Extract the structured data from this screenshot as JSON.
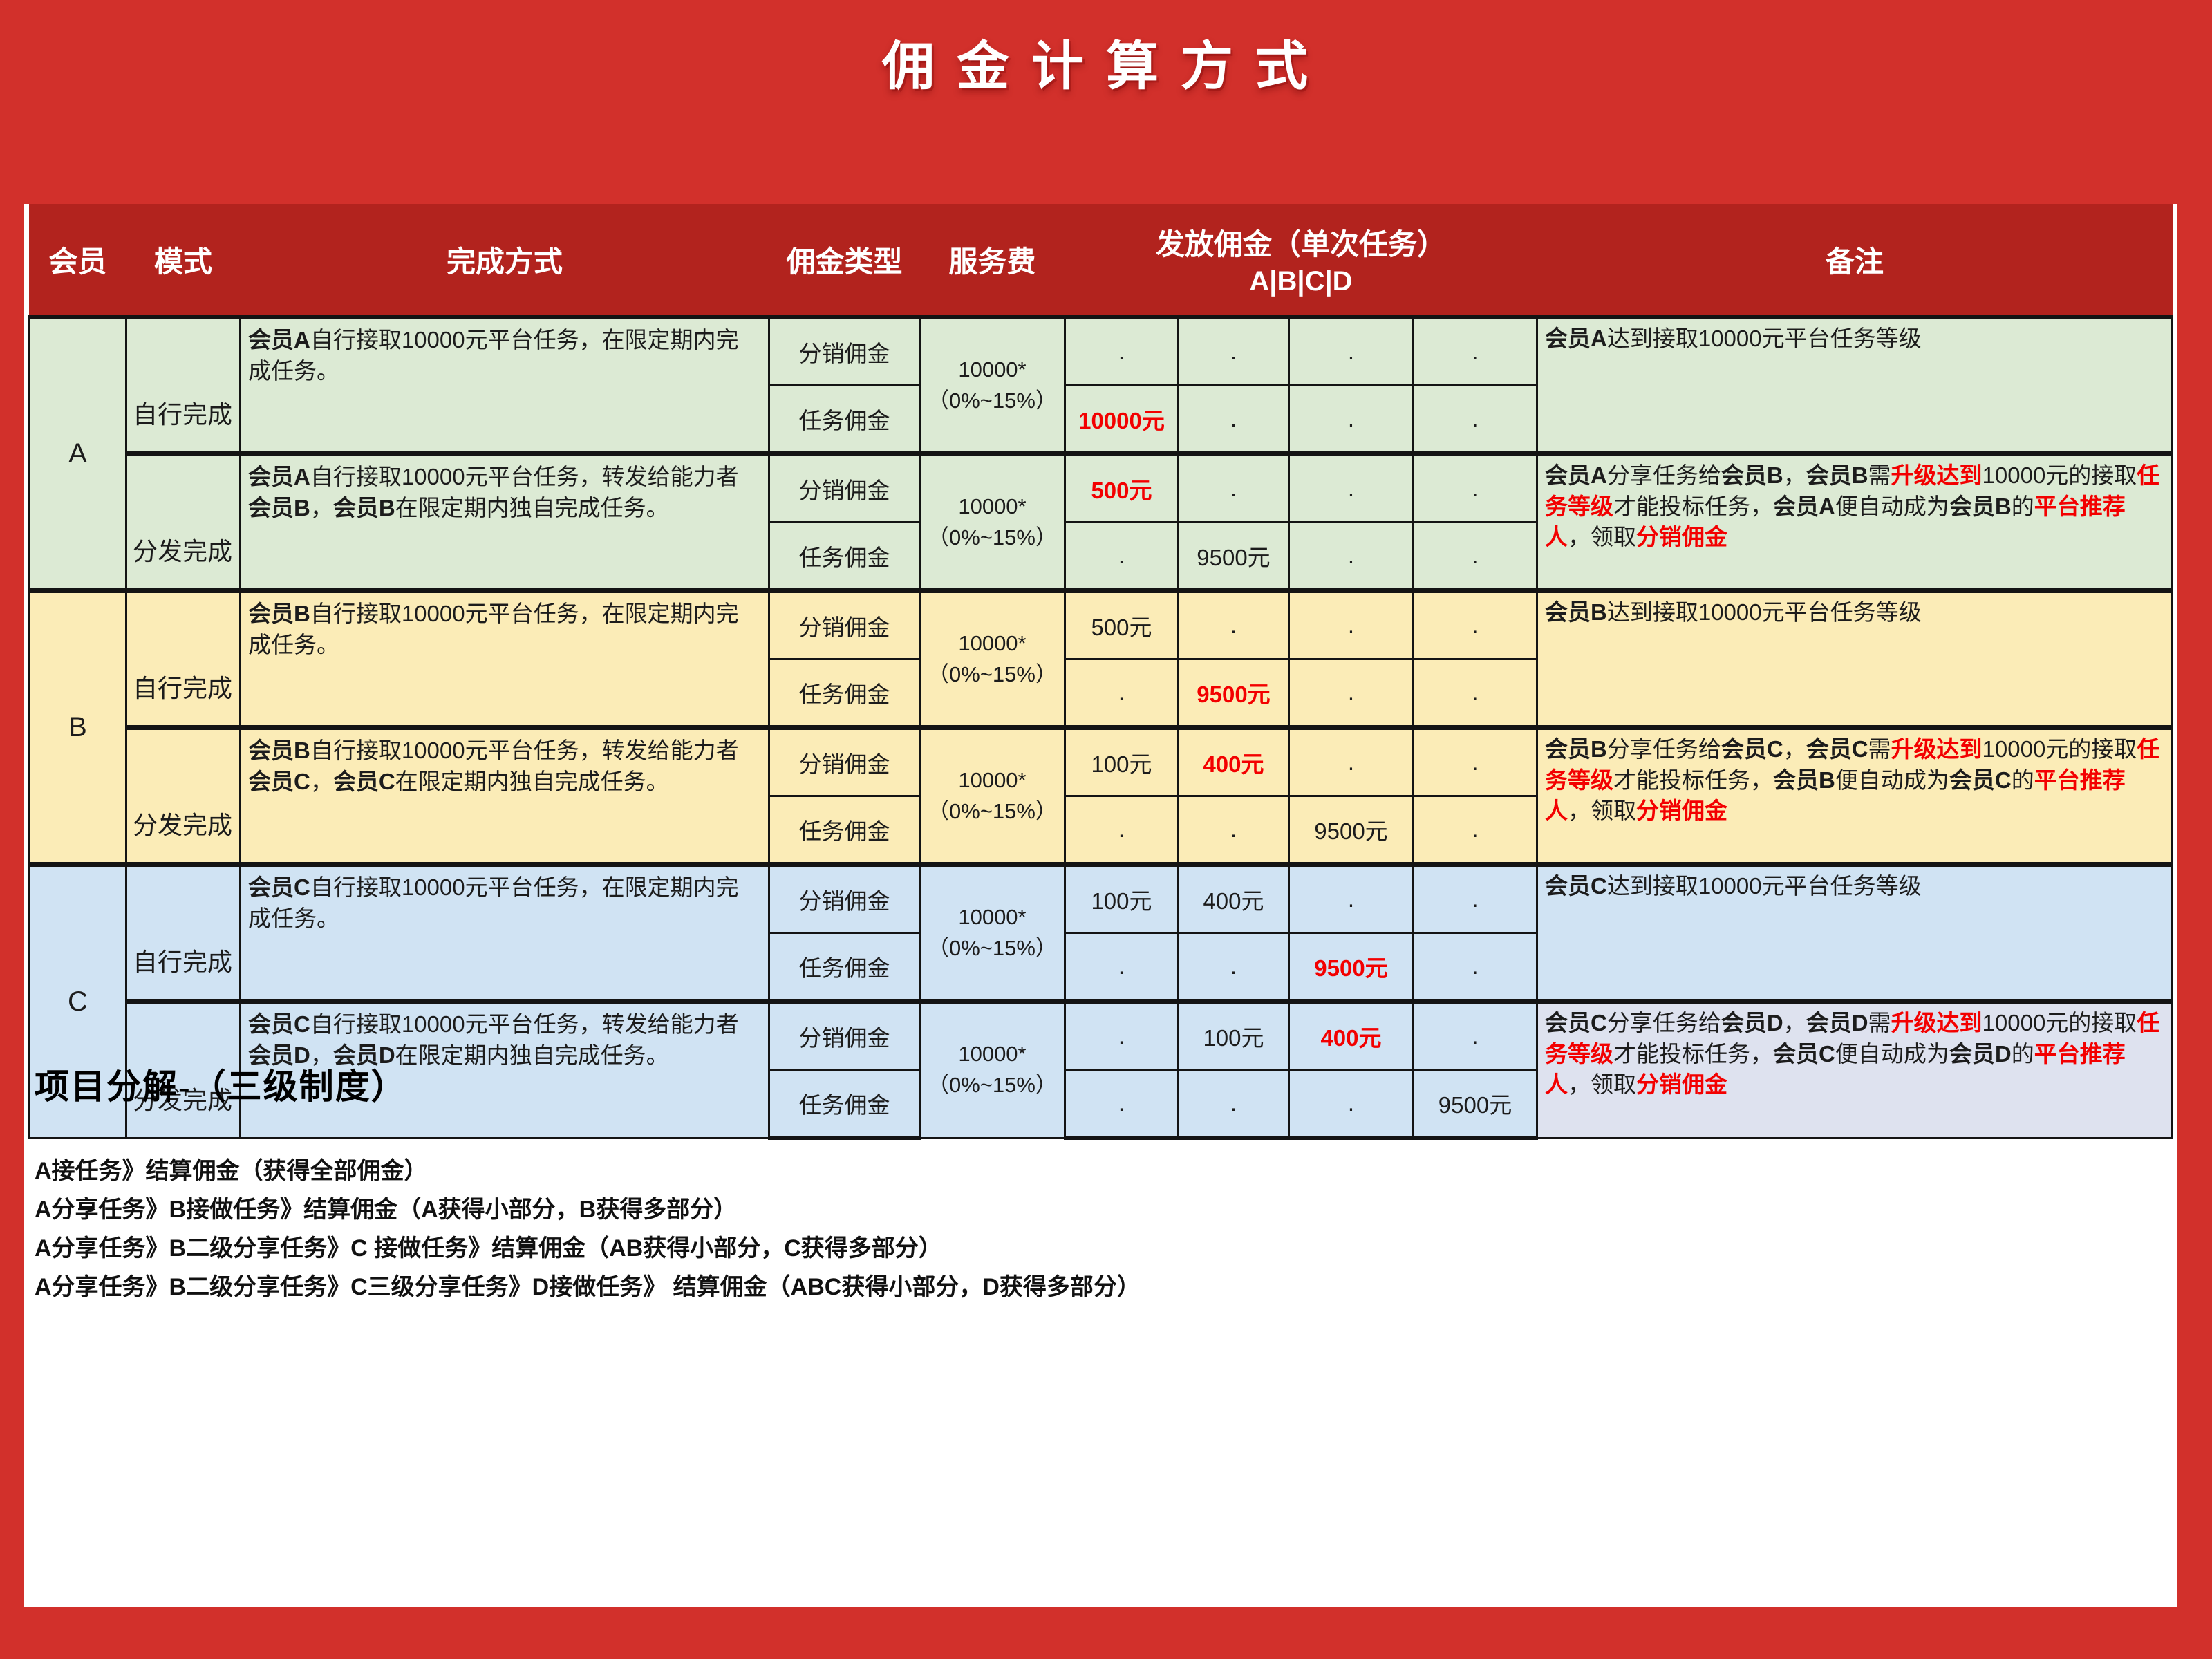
{
  "title": "佣金计算方式",
  "colors": {
    "page_red": "#d2302b",
    "header_red": "#b2231e",
    "group_a_green": "#dcead4",
    "group_b_yellow": "#fbecb7",
    "group_c_blue": "#d0e3f3",
    "remark_tint": "#dee2ef",
    "accent_red_text": "#f30000"
  },
  "table": {
    "headers": {
      "member": "会员",
      "mode": "模式",
      "completion": "完成方式",
      "commission_type": "佣金类型",
      "service_fee": "服务费",
      "payout_title": "发放佣金（单次任务）",
      "payout_sub": "A|B|C|D",
      "remark": "备注"
    },
    "groups": [
      {
        "member": "A",
        "color_key": "green",
        "modes": [
          {
            "mode": "自行完成",
            "desc": [
              {
                "t": "会员A",
                "b": true
              },
              {
                "t": "自行接取10000元平台任务，在限定期内完成任务。"
              }
            ],
            "fee_line1": "10000*",
            "fee_line2": "（0%~15%）",
            "rows": [
              {
                "type": "分销佣金",
                "values": [
                  {
                    "t": "."
                  },
                  {
                    "t": "."
                  },
                  {
                    "t": "."
                  },
                  {
                    "t": "."
                  }
                ]
              },
              {
                "type": "任务佣金",
                "values": [
                  {
                    "t": "10000元",
                    "red": true
                  },
                  {
                    "t": "."
                  },
                  {
                    "t": "."
                  },
                  {
                    "t": "."
                  }
                ]
              }
            ],
            "remark": [
              {
                "t": "会员A",
                "b": true
              },
              {
                "t": "达到接取10000元平台任务等级"
              }
            ]
          },
          {
            "mode": "分发完成",
            "desc": [
              {
                "t": "会员A",
                "b": true
              },
              {
                "t": "自行接取10000元平台任务，转发给能力者"
              },
              {
                "t": "会员B",
                "b": true
              },
              {
                "t": "，"
              },
              {
                "t": "会员B",
                "b": true
              },
              {
                "t": "在限定期内独自完成任务。"
              }
            ],
            "fee_line1": "10000*",
            "fee_line2": "（0%~15%）",
            "rows": [
              {
                "type": "分销佣金",
                "values": [
                  {
                    "t": "500元",
                    "red": true
                  },
                  {
                    "t": "."
                  },
                  {
                    "t": "."
                  },
                  {
                    "t": "."
                  }
                ]
              },
              {
                "type": "任务佣金",
                "values": [
                  {
                    "t": "."
                  },
                  {
                    "t": "9500元"
                  },
                  {
                    "t": "."
                  },
                  {
                    "t": "."
                  }
                ]
              }
            ],
            "remark": [
              {
                "t": "会员A",
                "b": true
              },
              {
                "t": "分享任务给"
              },
              {
                "t": "会员B",
                "b": true
              },
              {
                "t": "，"
              },
              {
                "t": "会员B",
                "b": true
              },
              {
                "t": "需"
              },
              {
                "t": "升级达到",
                "b": true,
                "r": true
              },
              {
                "t": "10000元的接取"
              },
              {
                "t": "任务等级",
                "b": true,
                "r": true
              },
              {
                "t": "才能投标任务，"
              },
              {
                "t": "会员A",
                "b": true
              },
              {
                "t": "便自动成为"
              },
              {
                "t": "会员B",
                "b": true
              },
              {
                "t": "的"
              },
              {
                "t": "平台推荐人",
                "b": true,
                "r": true
              },
              {
                "t": "，领取"
              },
              {
                "t": "分销佣金",
                "b": true,
                "r": true
              }
            ]
          }
        ]
      },
      {
        "member": "B",
        "color_key": "yellow",
        "modes": [
          {
            "mode": "自行完成",
            "desc": [
              {
                "t": "会员B",
                "b": true
              },
              {
                "t": "自行接取10000元平台任务，在限定期内完成任务。"
              }
            ],
            "fee_line1": "10000*",
            "fee_line2": "（0%~15%）",
            "rows": [
              {
                "type": "分销佣金",
                "values": [
                  {
                    "t": "500元"
                  },
                  {
                    "t": "."
                  },
                  {
                    "t": "."
                  },
                  {
                    "t": "."
                  }
                ]
              },
              {
                "type": "任务佣金",
                "values": [
                  {
                    "t": "."
                  },
                  {
                    "t": "9500元",
                    "red": true
                  },
                  {
                    "t": "."
                  },
                  {
                    "t": "."
                  }
                ]
              }
            ],
            "remark": [
              {
                "t": "会员B",
                "b": true
              },
              {
                "t": "达到接取10000元平台任务等级"
              }
            ]
          },
          {
            "mode": "分发完成",
            "desc": [
              {
                "t": "会员B",
                "b": true
              },
              {
                "t": "自行接取10000元平台任务，转发给能力者"
              },
              {
                "t": "会员C",
                "b": true
              },
              {
                "t": "，"
              },
              {
                "t": "会员C",
                "b": true
              },
              {
                "t": "在限定期内独自完成任务。"
              }
            ],
            "fee_line1": "10000*",
            "fee_line2": "（0%~15%）",
            "rows": [
              {
                "type": "分销佣金",
                "values": [
                  {
                    "t": "100元"
                  },
                  {
                    "t": "400元",
                    "red": true
                  },
                  {
                    "t": "."
                  },
                  {
                    "t": "."
                  }
                ]
              },
              {
                "type": "任务佣金",
                "values": [
                  {
                    "t": "."
                  },
                  {
                    "t": "."
                  },
                  {
                    "t": "9500元"
                  },
                  {
                    "t": "."
                  }
                ]
              }
            ],
            "remark": [
              {
                "t": "会员B",
                "b": true
              },
              {
                "t": "分享任务给"
              },
              {
                "t": "会员C",
                "b": true
              },
              {
                "t": "，"
              },
              {
                "t": "会员C",
                "b": true
              },
              {
                "t": "需"
              },
              {
                "t": "升级达到",
                "b": true,
                "r": true
              },
              {
                "t": "10000元的接取"
              },
              {
                "t": "任务等级",
                "b": true,
                "r": true
              },
              {
                "t": "才能投标任务，"
              },
              {
                "t": "会员B",
                "b": true
              },
              {
                "t": "便自动成为"
              },
              {
                "t": "会员C",
                "b": true
              },
              {
                "t": "的"
              },
              {
                "t": "平台推荐人",
                "b": true,
                "r": true
              },
              {
                "t": "，领取"
              },
              {
                "t": "分销佣金",
                "b": true,
                "r": true
              }
            ]
          }
        ]
      },
      {
        "member": "C",
        "color_key": "blue",
        "modes": [
          {
            "mode": "自行完成",
            "desc": [
              {
                "t": "会员C",
                "b": true
              },
              {
                "t": "自行接取10000元平台任务，在限定期内完成任务。"
              }
            ],
            "fee_line1": "10000*",
            "fee_line2": "（0%~15%）",
            "rows": [
              {
                "type": "分销佣金",
                "values": [
                  {
                    "t": "100元"
                  },
                  {
                    "t": "400元"
                  },
                  {
                    "t": "."
                  },
                  {
                    "t": "."
                  }
                ]
              },
              {
                "type": "任务佣金",
                "values": [
                  {
                    "t": "."
                  },
                  {
                    "t": "."
                  },
                  {
                    "t": "9500元",
                    "red": true
                  },
                  {
                    "t": "."
                  }
                ]
              }
            ],
            "remark": [
              {
                "t": "会员C",
                "b": true
              },
              {
                "t": "达到接取10000元平台任务等级"
              }
            ]
          },
          {
            "mode": "分发完成",
            "remark_tint": true,
            "desc": [
              {
                "t": "会员C",
                "b": true
              },
              {
                "t": "自行接取10000元平台任务，转发给能力者"
              },
              {
                "t": "会员D",
                "b": true
              },
              {
                "t": "，"
              },
              {
                "t": "会员D",
                "b": true
              },
              {
                "t": "在限定期内独自完成任务。"
              }
            ],
            "fee_line1": "10000*",
            "fee_line2": "（0%~15%）",
            "rows": [
              {
                "type": "分销佣金",
                "values": [
                  {
                    "t": "."
                  },
                  {
                    "t": "100元"
                  },
                  {
                    "t": "400元",
                    "red": true
                  },
                  {
                    "t": "."
                  }
                ]
              },
              {
                "type": "任务佣金",
                "values": [
                  {
                    "t": "."
                  },
                  {
                    "t": "."
                  },
                  {
                    "t": "."
                  },
                  {
                    "t": "9500元"
                  }
                ]
              }
            ],
            "remark": [
              {
                "t": "会员C",
                "b": true
              },
              {
                "t": "分享任务给"
              },
              {
                "t": "会员D",
                "b": true
              },
              {
                "t": "，"
              },
              {
                "t": "会员D",
                "b": true
              },
              {
                "t": "需"
              },
              {
                "t": "升级达到",
                "b": true,
                "r": true
              },
              {
                "t": "10000元的接取"
              },
              {
                "t": "任务等级",
                "b": true,
                "r": true
              },
              {
                "t": "才能投标任务，"
              },
              {
                "t": "会员C",
                "b": true
              },
              {
                "t": "便自动成为"
              },
              {
                "t": "会员D",
                "b": true
              },
              {
                "t": "的"
              },
              {
                "t": "平台推荐人",
                "b": true,
                "r": true
              },
              {
                "t": "，领取"
              },
              {
                "t": "分销佣金",
                "b": true,
                "r": true
              }
            ]
          }
        ]
      }
    ]
  },
  "footer": {
    "heading": "项目分解-（三级制度）",
    "lines": [
      "A接任务》结算佣金（获得全部佣金）",
      "A分享任务》B接做任务》结算佣金（A获得小部分，B获得多部分）",
      "A分享任务》B二级分享任务》C 接做任务》结算佣金（AB获得小部分，C获得多部分）",
      "A分享任务》B二级分享任务》C三级分享任务》D接做任务》 结算佣金（ABC获得小部分，D获得多部分）"
    ]
  }
}
